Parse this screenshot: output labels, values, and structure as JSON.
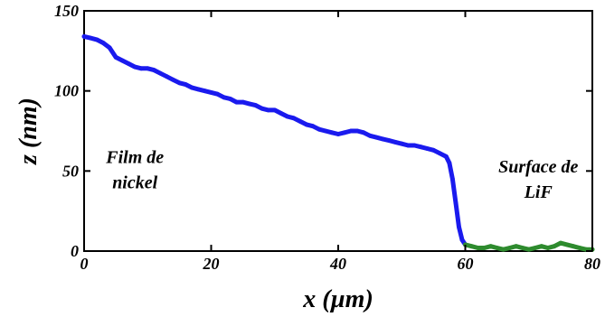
{
  "chart_data": {
    "type": "line",
    "xlabel": "x (µm)",
    "ylabel": "z (nm)",
    "xlim": [
      0,
      80
    ],
    "ylim": [
      0,
      150
    ],
    "xticks": [
      "0",
      "20",
      "40",
      "60",
      "80"
    ],
    "yticks": [
      "0",
      "50",
      "100",
      "150"
    ],
    "grid": false,
    "annotations": [
      {
        "lines": [
          "Film de",
          "nickel"
        ],
        "x": 8,
        "y": 55
      },
      {
        "lines": [
          "Surface de",
          "LiF"
        ],
        "x": 71.5,
        "y": 49
      }
    ],
    "series": [
      {
        "color": "#1a1aee",
        "x": [
          0,
          1,
          2,
          3,
          4,
          5,
          6,
          7,
          8,
          9,
          10,
          11,
          12,
          13,
          14,
          15,
          16,
          17,
          18,
          19,
          20,
          21,
          22,
          23,
          24,
          25,
          26,
          27,
          28,
          29,
          30,
          31,
          32,
          33,
          34,
          35,
          36,
          37,
          38,
          39,
          40,
          41,
          42,
          43,
          44,
          45,
          46,
          47,
          48,
          49,
          50,
          51,
          52,
          53,
          54,
          55,
          56,
          57,
          57.5,
          58,
          58.5,
          59,
          59.5,
          60
        ],
        "y": [
          134,
          133,
          132,
          130,
          127,
          121,
          119,
          117,
          115,
          114,
          114,
          113,
          111,
          109,
          107,
          105,
          104,
          102,
          101,
          100,
          99,
          98,
          96,
          95,
          93,
          93,
          92,
          91,
          89,
          88,
          88,
          86,
          84,
          83,
          81,
          79,
          78,
          76,
          75,
          74,
          73,
          74,
          75,
          75,
          74,
          72,
          71,
          70,
          69,
          68,
          67,
          66,
          66,
          65,
          64,
          63,
          61,
          59,
          55,
          45,
          30,
          15,
          7,
          4
        ]
      },
      {
        "color": "#2e8b2e",
        "x": [
          60,
          61,
          62,
          63,
          64,
          65,
          66,
          67,
          68,
          69,
          70,
          71,
          72,
          73,
          74,
          75,
          76,
          77,
          78,
          79,
          80
        ],
        "y": [
          4,
          3,
          2,
          2,
          3,
          2,
          1,
          2,
          3,
          2,
          1,
          2,
          3,
          2,
          3,
          5,
          4,
          3,
          2,
          1,
          1
        ]
      }
    ]
  }
}
